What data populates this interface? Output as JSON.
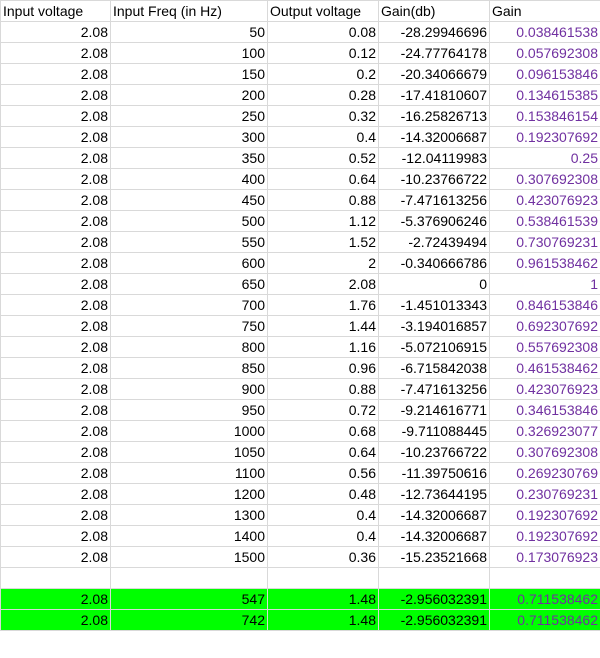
{
  "sheet": {
    "headers": [
      "Input voltage",
      "Input Freq (in Hz)",
      "Output voltage",
      "Gain(db)",
      "Gain"
    ],
    "rows": [
      [
        "2.08",
        "50",
        "0.08",
        "-28.29946696",
        "0.038461538"
      ],
      [
        "2.08",
        "100",
        "0.12",
        "-24.77764178",
        "0.057692308"
      ],
      [
        "2.08",
        "150",
        "0.2",
        "-20.34066679",
        "0.096153846"
      ],
      [
        "2.08",
        "200",
        "0.28",
        "-17.41810607",
        "0.134615385"
      ],
      [
        "2.08",
        "250",
        "0.32",
        "-16.25826713",
        "0.153846154"
      ],
      [
        "2.08",
        "300",
        "0.4",
        "-14.32006687",
        "0.192307692"
      ],
      [
        "2.08",
        "350",
        "0.52",
        "-12.04119983",
        "0.25"
      ],
      [
        "2.08",
        "400",
        "0.64",
        "-10.23766722",
        "0.307692308"
      ],
      [
        "2.08",
        "450",
        "0.88",
        "-7.471613256",
        "0.423076923"
      ],
      [
        "2.08",
        "500",
        "1.12",
        "-5.376906246",
        "0.538461539"
      ],
      [
        "2.08",
        "550",
        "1.52",
        "-2.72439494",
        "0.730769231"
      ],
      [
        "2.08",
        "600",
        "2",
        "-0.340666786",
        "0.961538462"
      ],
      [
        "2.08",
        "650",
        "2.08",
        "0",
        "1"
      ],
      [
        "2.08",
        "700",
        "1.76",
        "-1.451013343",
        "0.846153846"
      ],
      [
        "2.08",
        "750",
        "1.44",
        "-3.194016857",
        "0.692307692"
      ],
      [
        "2.08",
        "800",
        "1.16",
        "-5.072106915",
        "0.557692308"
      ],
      [
        "2.08",
        "850",
        "0.96",
        "-6.715842038",
        "0.461538462"
      ],
      [
        "2.08",
        "900",
        "0.88",
        "-7.471613256",
        "0.423076923"
      ],
      [
        "2.08",
        "950",
        "0.72",
        "-9.214616771",
        "0.346153846"
      ],
      [
        "2.08",
        "1000",
        "0.68",
        "-9.711088445",
        "0.326923077"
      ],
      [
        "2.08",
        "1050",
        "0.64",
        "-10.23766722",
        "0.307692308"
      ],
      [
        "2.08",
        "1100",
        "0.56",
        "-11.39750616",
        "0.269230769"
      ],
      [
        "2.08",
        "1200",
        "0.48",
        "-12.73644195",
        "0.230769231"
      ],
      [
        "2.08",
        "1300",
        "0.4",
        "-14.32006687",
        "0.192307692"
      ],
      [
        "2.08",
        "1400",
        "0.4",
        "-14.32006687",
        "0.192307692"
      ],
      [
        "2.08",
        "1500",
        "0.36",
        "-15.23521668",
        "0.173076923"
      ]
    ],
    "highlighted_rows": [
      [
        "2.08",
        "547",
        "1.48",
        "-2.956032391",
        "0.711538462"
      ],
      [
        "2.08",
        "742",
        "1.48",
        "-2.956032391",
        "0.711538462"
      ]
    ],
    "colors": {
      "gain_text": "#7030a0",
      "highlight_fill": "#00ff00",
      "grid": "#d9d9d9"
    }
  }
}
